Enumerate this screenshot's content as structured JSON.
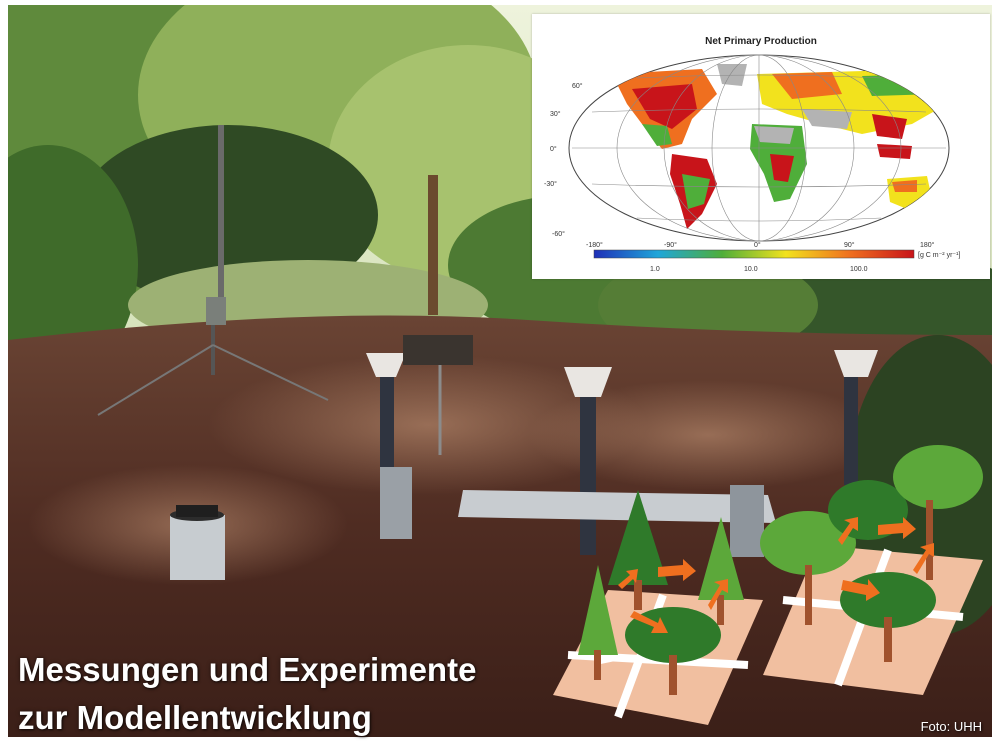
{
  "caption": {
    "line1": "Messungen und Experimente",
    "line2": "zur Modellentwicklung"
  },
  "credit": "Foto: UHH",
  "inset_map": {
    "title": "Net Primary Production",
    "lat_ticks": [
      "60°",
      "30°",
      "0°",
      "-30°",
      "-60°"
    ],
    "lon_ticks": [
      "-180°",
      "-90°",
      "0°",
      "90°",
      "180°"
    ],
    "colorbar_ticks": [
      "1.0",
      "10.0",
      "100.0"
    ],
    "unit": "[g C m⁻² yr⁻¹]",
    "colors": {
      "low": "#1f2fb8",
      "mid": "#f2e21d",
      "high": "#c8141a",
      "vegetation_green": "#4fae3a"
    }
  },
  "colors": {
    "mulch_ground": "#4f2c22",
    "foliage": "#3f6b2a",
    "sky_light": "#dfe8c8",
    "tree_dark": "#2f7a2a",
    "tree_light": "#5ca83a",
    "plot_tile": "#f1bfa0",
    "arrow": "#ef6f1f"
  }
}
